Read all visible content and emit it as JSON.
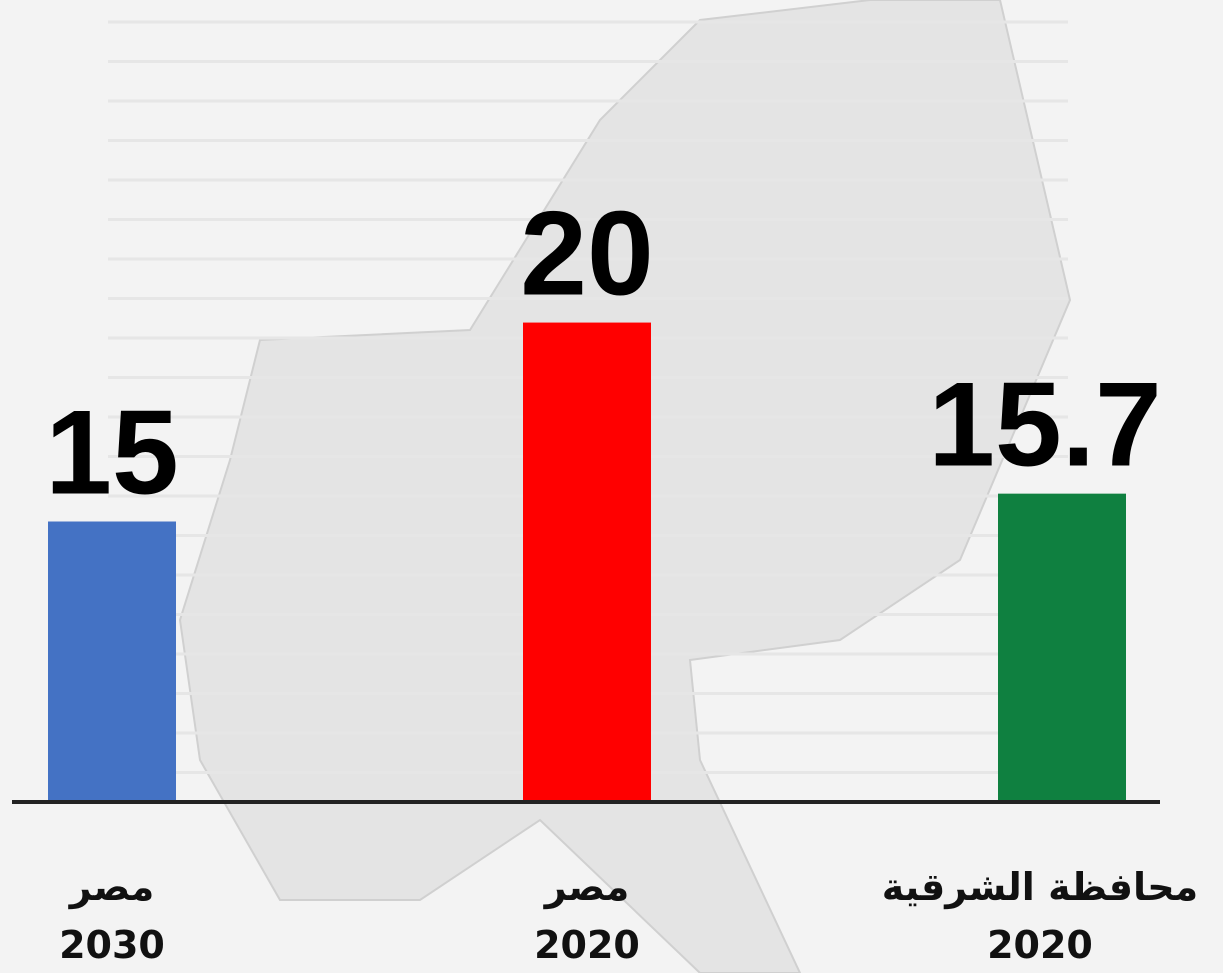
{
  "chart_data": {
    "type": "bar",
    "categories": [
      [
        "مصر",
        "2030"
      ],
      [
        "مصر",
        "2020"
      ],
      [
        "محافظة الشرقية",
        "2020"
      ]
    ],
    "values": [
      15,
      20,
      15.7
    ],
    "colors": [
      "#4472c4",
      "#ff0000",
      "#0f8040"
    ],
    "ylim": [
      8,
      22
    ]
  }
}
